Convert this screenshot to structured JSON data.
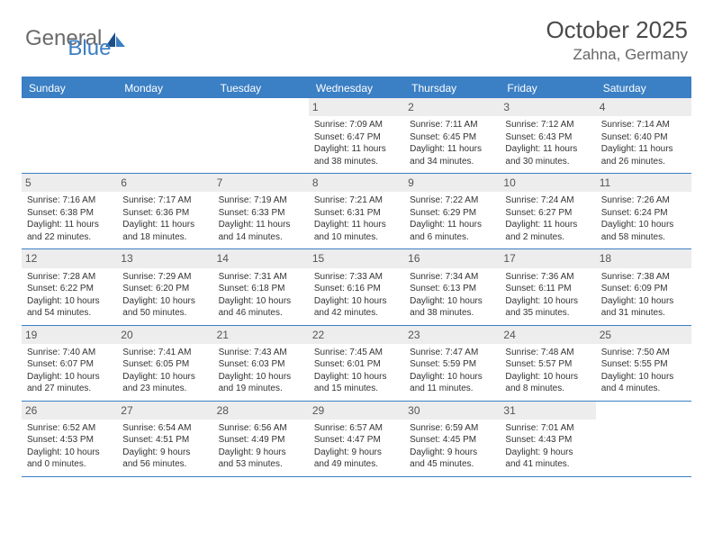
{
  "brand": {
    "part1": "General",
    "part2": "Blue"
  },
  "title": "October 2025",
  "location": "Zahna, Germany",
  "day_names": [
    "Sunday",
    "Monday",
    "Tuesday",
    "Wednesday",
    "Thursday",
    "Friday",
    "Saturday"
  ],
  "colors": {
    "accent": "#3b7fc4",
    "header_bg": "#ededed",
    "text": "#333333",
    "muted": "#666666",
    "brand_gray": "#6b6b6b"
  },
  "weeks": [
    [
      {
        "day": "",
        "empty": true
      },
      {
        "day": "",
        "empty": true
      },
      {
        "day": "",
        "empty": true
      },
      {
        "day": "1",
        "sunrise": "Sunrise: 7:09 AM",
        "sunset": "Sunset: 6:47 PM",
        "daylight": "Daylight: 11 hours and 38 minutes."
      },
      {
        "day": "2",
        "sunrise": "Sunrise: 7:11 AM",
        "sunset": "Sunset: 6:45 PM",
        "daylight": "Daylight: 11 hours and 34 minutes."
      },
      {
        "day": "3",
        "sunrise": "Sunrise: 7:12 AM",
        "sunset": "Sunset: 6:43 PM",
        "daylight": "Daylight: 11 hours and 30 minutes."
      },
      {
        "day": "4",
        "sunrise": "Sunrise: 7:14 AM",
        "sunset": "Sunset: 6:40 PM",
        "daylight": "Daylight: 11 hours and 26 minutes."
      }
    ],
    [
      {
        "day": "5",
        "sunrise": "Sunrise: 7:16 AM",
        "sunset": "Sunset: 6:38 PM",
        "daylight": "Daylight: 11 hours and 22 minutes."
      },
      {
        "day": "6",
        "sunrise": "Sunrise: 7:17 AM",
        "sunset": "Sunset: 6:36 PM",
        "daylight": "Daylight: 11 hours and 18 minutes."
      },
      {
        "day": "7",
        "sunrise": "Sunrise: 7:19 AM",
        "sunset": "Sunset: 6:33 PM",
        "daylight": "Daylight: 11 hours and 14 minutes."
      },
      {
        "day": "8",
        "sunrise": "Sunrise: 7:21 AM",
        "sunset": "Sunset: 6:31 PM",
        "daylight": "Daylight: 11 hours and 10 minutes."
      },
      {
        "day": "9",
        "sunrise": "Sunrise: 7:22 AM",
        "sunset": "Sunset: 6:29 PM",
        "daylight": "Daylight: 11 hours and 6 minutes."
      },
      {
        "day": "10",
        "sunrise": "Sunrise: 7:24 AM",
        "sunset": "Sunset: 6:27 PM",
        "daylight": "Daylight: 11 hours and 2 minutes."
      },
      {
        "day": "11",
        "sunrise": "Sunrise: 7:26 AM",
        "sunset": "Sunset: 6:24 PM",
        "daylight": "Daylight: 10 hours and 58 minutes."
      }
    ],
    [
      {
        "day": "12",
        "sunrise": "Sunrise: 7:28 AM",
        "sunset": "Sunset: 6:22 PM",
        "daylight": "Daylight: 10 hours and 54 minutes."
      },
      {
        "day": "13",
        "sunrise": "Sunrise: 7:29 AM",
        "sunset": "Sunset: 6:20 PM",
        "daylight": "Daylight: 10 hours and 50 minutes."
      },
      {
        "day": "14",
        "sunrise": "Sunrise: 7:31 AM",
        "sunset": "Sunset: 6:18 PM",
        "daylight": "Daylight: 10 hours and 46 minutes."
      },
      {
        "day": "15",
        "sunrise": "Sunrise: 7:33 AM",
        "sunset": "Sunset: 6:16 PM",
        "daylight": "Daylight: 10 hours and 42 minutes."
      },
      {
        "day": "16",
        "sunrise": "Sunrise: 7:34 AM",
        "sunset": "Sunset: 6:13 PM",
        "daylight": "Daylight: 10 hours and 38 minutes."
      },
      {
        "day": "17",
        "sunrise": "Sunrise: 7:36 AM",
        "sunset": "Sunset: 6:11 PM",
        "daylight": "Daylight: 10 hours and 35 minutes."
      },
      {
        "day": "18",
        "sunrise": "Sunrise: 7:38 AM",
        "sunset": "Sunset: 6:09 PM",
        "daylight": "Daylight: 10 hours and 31 minutes."
      }
    ],
    [
      {
        "day": "19",
        "sunrise": "Sunrise: 7:40 AM",
        "sunset": "Sunset: 6:07 PM",
        "daylight": "Daylight: 10 hours and 27 minutes."
      },
      {
        "day": "20",
        "sunrise": "Sunrise: 7:41 AM",
        "sunset": "Sunset: 6:05 PM",
        "daylight": "Daylight: 10 hours and 23 minutes."
      },
      {
        "day": "21",
        "sunrise": "Sunrise: 7:43 AM",
        "sunset": "Sunset: 6:03 PM",
        "daylight": "Daylight: 10 hours and 19 minutes."
      },
      {
        "day": "22",
        "sunrise": "Sunrise: 7:45 AM",
        "sunset": "Sunset: 6:01 PM",
        "daylight": "Daylight: 10 hours and 15 minutes."
      },
      {
        "day": "23",
        "sunrise": "Sunrise: 7:47 AM",
        "sunset": "Sunset: 5:59 PM",
        "daylight": "Daylight: 10 hours and 11 minutes."
      },
      {
        "day": "24",
        "sunrise": "Sunrise: 7:48 AM",
        "sunset": "Sunset: 5:57 PM",
        "daylight": "Daylight: 10 hours and 8 minutes."
      },
      {
        "day": "25",
        "sunrise": "Sunrise: 7:50 AM",
        "sunset": "Sunset: 5:55 PM",
        "daylight": "Daylight: 10 hours and 4 minutes."
      }
    ],
    [
      {
        "day": "26",
        "sunrise": "Sunrise: 6:52 AM",
        "sunset": "Sunset: 4:53 PM",
        "daylight": "Daylight: 10 hours and 0 minutes."
      },
      {
        "day": "27",
        "sunrise": "Sunrise: 6:54 AM",
        "sunset": "Sunset: 4:51 PM",
        "daylight": "Daylight: 9 hours and 56 minutes."
      },
      {
        "day": "28",
        "sunrise": "Sunrise: 6:56 AM",
        "sunset": "Sunset: 4:49 PM",
        "daylight": "Daylight: 9 hours and 53 minutes."
      },
      {
        "day": "29",
        "sunrise": "Sunrise: 6:57 AM",
        "sunset": "Sunset: 4:47 PM",
        "daylight": "Daylight: 9 hours and 49 minutes."
      },
      {
        "day": "30",
        "sunrise": "Sunrise: 6:59 AM",
        "sunset": "Sunset: 4:45 PM",
        "daylight": "Daylight: 9 hours and 45 minutes."
      },
      {
        "day": "31",
        "sunrise": "Sunrise: 7:01 AM",
        "sunset": "Sunset: 4:43 PM",
        "daylight": "Daylight: 9 hours and 41 minutes."
      },
      {
        "day": "",
        "empty": true
      }
    ]
  ]
}
